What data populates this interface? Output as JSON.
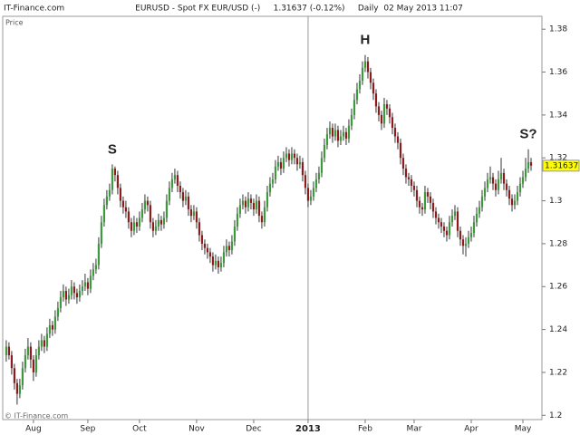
{
  "chart_data": {
    "type": "candlestick",
    "site": "IT-Finance.com",
    "title": "EURUSD - Spot FX EUR/USD (-)     1.31637 (-0.12%)     Daily  02 May 2013 11:07",
    "y_label": "Price",
    "watermark": "© IT-Finance.com",
    "last_price": 1.31637,
    "last_price_label": "1.31637",
    "up_color": "#3c9a3c",
    "down_color": "#8e1b1b",
    "annotations": [
      {
        "text": "S",
        "index": 39,
        "price": 1.317
      },
      {
        "text": "H",
        "index": 132,
        "price": 1.368
      },
      {
        "text": "S?",
        "index": 192,
        "price": 1.324
      }
    ],
    "xlim": [
      -1.3,
      197
    ],
    "xticks": [
      {
        "value": 10,
        "label": "Aug"
      },
      {
        "value": 30,
        "label": "Sep"
      },
      {
        "value": 49,
        "label": "Oct"
      },
      {
        "value": 70,
        "label": "Nov"
      },
      {
        "value": 91,
        "label": "Dec"
      },
      {
        "value": 111,
        "label": "2013"
      },
      {
        "value": 132,
        "label": "Feb"
      },
      {
        "value": 150,
        "label": "Mar"
      },
      {
        "value": 171,
        "label": "Apr"
      },
      {
        "value": 190,
        "label": "May"
      }
    ],
    "ylim": [
      1.198,
      1.386
    ],
    "yticks": [
      1.38,
      1.36,
      1.34,
      1.32,
      1.3,
      1.28,
      1.26,
      1.24,
      1.22,
      1.2
    ],
    "ohlc": [
      [
        1.228,
        1.235,
        1.225,
        1.232
      ],
      [
        1.232,
        1.234,
        1.226,
        1.228
      ],
      [
        1.228,
        1.23,
        1.219,
        1.222
      ],
      [
        1.222,
        1.224,
        1.212,
        1.215
      ],
      [
        1.215,
        1.217,
        1.205,
        1.21
      ],
      [
        1.21,
        1.217,
        1.208,
        1.214
      ],
      [
        1.214,
        1.225,
        1.212,
        1.222
      ],
      [
        1.222,
        1.231,
        1.22,
        1.228
      ],
      [
        1.228,
        1.236,
        1.226,
        1.232
      ],
      [
        1.232,
        1.234,
        1.222,
        1.226
      ],
      [
        1.226,
        1.228,
        1.216,
        1.22
      ],
      [
        1.22,
        1.231,
        1.218,
        1.228
      ],
      [
        1.228,
        1.235,
        1.226,
        1.232
      ],
      [
        1.232,
        1.238,
        1.23,
        1.235
      ],
      [
        1.235,
        1.237,
        1.229,
        1.232
      ],
      [
        1.232,
        1.241,
        1.23,
        1.238
      ],
      [
        1.238,
        1.245,
        1.236,
        1.242
      ],
      [
        1.242,
        1.244,
        1.237,
        1.24
      ],
      [
        1.24,
        1.249,
        1.238,
        1.246
      ],
      [
        1.246,
        1.253,
        1.244,
        1.25
      ],
      [
        1.25,
        1.258,
        1.248,
        1.255
      ],
      [
        1.255,
        1.261,
        1.253,
        1.258
      ],
      [
        1.258,
        1.26,
        1.251,
        1.254
      ],
      [
        1.254,
        1.259,
        1.252,
        1.256
      ],
      [
        1.256,
        1.263,
        1.254,
        1.26
      ],
      [
        1.26,
        1.262,
        1.254,
        1.257
      ],
      [
        1.257,
        1.259,
        1.252,
        1.255
      ],
      [
        1.255,
        1.261,
        1.253,
        1.258
      ],
      [
        1.258,
        1.263,
        1.256,
        1.26
      ],
      [
        1.26,
        1.266,
        1.258,
        1.262
      ],
      [
        1.262,
        1.264,
        1.256,
        1.259
      ],
      [
        1.259,
        1.268,
        1.257,
        1.265
      ],
      [
        1.265,
        1.271,
        1.263,
        1.268
      ],
      [
        1.268,
        1.273,
        1.266,
        1.27
      ],
      [
        1.27,
        1.283,
        1.268,
        1.28
      ],
      [
        1.28,
        1.293,
        1.278,
        1.29
      ],
      [
        1.29,
        1.301,
        1.288,
        1.298
      ],
      [
        1.298,
        1.305,
        1.296,
        1.302
      ],
      [
        1.302,
        1.308,
        1.3,
        1.305
      ],
      [
        1.305,
        1.317,
        1.303,
        1.315
      ],
      [
        1.315,
        1.316,
        1.309,
        1.312
      ],
      [
        1.312,
        1.314,
        1.303,
        1.306
      ],
      [
        1.306,
        1.308,
        1.297,
        1.3
      ],
      [
        1.3,
        1.302,
        1.294,
        1.297
      ],
      [
        1.297,
        1.3,
        1.292,
        1.295
      ],
      [
        1.295,
        1.297,
        1.287,
        1.29
      ],
      [
        1.29,
        1.292,
        1.283,
        1.286
      ],
      [
        1.286,
        1.293,
        1.284,
        1.29
      ],
      [
        1.29,
        1.292,
        1.285,
        1.288
      ],
      [
        1.288,
        1.295,
        1.286,
        1.292
      ],
      [
        1.292,
        1.299,
        1.29,
        1.296
      ],
      [
        1.296,
        1.303,
        1.294,
        1.3
      ],
      [
        1.3,
        1.302,
        1.295,
        1.298
      ],
      [
        1.298,
        1.3,
        1.287,
        1.29
      ],
      [
        1.29,
        1.292,
        1.283,
        1.286
      ],
      [
        1.286,
        1.291,
        1.284,
        1.288
      ],
      [
        1.288,
        1.294,
        1.286,
        1.291
      ],
      [
        1.291,
        1.293,
        1.286,
        1.289
      ],
      [
        1.289,
        1.295,
        1.287,
        1.292
      ],
      [
        1.292,
        1.303,
        1.29,
        1.3
      ],
      [
        1.3,
        1.309,
        1.298,
        1.306
      ],
      [
        1.306,
        1.313,
        1.304,
        1.31
      ],
      [
        1.31,
        1.315,
        1.308,
        1.312
      ],
      [
        1.312,
        1.314,
        1.304,
        1.307
      ],
      [
        1.307,
        1.309,
        1.301,
        1.304
      ],
      [
        1.304,
        1.306,
        1.297,
        1.3
      ],
      [
        1.3,
        1.305,
        1.298,
        1.302
      ],
      [
        1.302,
        1.304,
        1.293,
        1.296
      ],
      [
        1.296,
        1.298,
        1.29,
        1.293
      ],
      [
        1.293,
        1.298,
        1.291,
        1.295
      ],
      [
        1.295,
        1.297,
        1.287,
        1.29
      ],
      [
        1.29,
        1.292,
        1.281,
        1.284
      ],
      [
        1.284,
        1.286,
        1.277,
        1.28
      ],
      [
        1.28,
        1.282,
        1.275,
        1.278
      ],
      [
        1.278,
        1.28,
        1.273,
        1.276
      ],
      [
        1.276,
        1.278,
        1.271,
        1.274
      ],
      [
        1.274,
        1.276,
        1.267,
        1.27
      ],
      [
        1.27,
        1.275,
        1.268,
        1.272
      ],
      [
        1.272,
        1.274,
        1.266,
        1.269
      ],
      [
        1.269,
        1.274,
        1.267,
        1.271
      ],
      [
        1.271,
        1.279,
        1.269,
        1.276
      ],
      [
        1.276,
        1.282,
        1.274,
        1.279
      ],
      [
        1.279,
        1.281,
        1.274,
        1.277
      ],
      [
        1.277,
        1.284,
        1.275,
        1.281
      ],
      [
        1.281,
        1.291,
        1.279,
        1.288
      ],
      [
        1.288,
        1.297,
        1.286,
        1.294
      ],
      [
        1.294,
        1.301,
        1.292,
        1.298
      ],
      [
        1.298,
        1.303,
        1.296,
        1.3
      ],
      [
        1.3,
        1.302,
        1.294,
        1.297
      ],
      [
        1.297,
        1.304,
        1.295,
        1.301
      ],
      [
        1.301,
        1.303,
        1.296,
        1.299
      ],
      [
        1.299,
        1.301,
        1.293,
        1.296
      ],
      [
        1.296,
        1.303,
        1.294,
        1.3
      ],
      [
        1.3,
        1.302,
        1.29,
        1.293
      ],
      [
        1.293,
        1.295,
        1.287,
        1.29
      ],
      [
        1.29,
        1.3,
        1.288,
        1.297
      ],
      [
        1.297,
        1.307,
        1.295,
        1.304
      ],
      [
        1.304,
        1.311,
        1.302,
        1.308
      ],
      [
        1.308,
        1.313,
        1.306,
        1.31
      ],
      [
        1.31,
        1.319,
        1.308,
        1.316
      ],
      [
        1.316,
        1.321,
        1.314,
        1.318
      ],
      [
        1.318,
        1.32,
        1.312,
        1.315
      ],
      [
        1.315,
        1.323,
        1.313,
        1.32
      ],
      [
        1.32,
        1.325,
        1.318,
        1.322
      ],
      [
        1.322,
        1.324,
        1.316,
        1.319
      ],
      [
        1.319,
        1.325,
        1.317,
        1.322
      ],
      [
        1.322,
        1.324,
        1.317,
        1.32
      ],
      [
        1.32,
        1.322,
        1.314,
        1.317
      ],
      [
        1.317,
        1.321,
        1.315,
        1.318
      ],
      [
        1.318,
        1.32,
        1.309,
        1.312
      ],
      [
        1.312,
        1.314,
        1.303,
        1.306
      ],
      [
        1.306,
        1.308,
        1.297,
        1.3
      ],
      [
        1.3,
        1.305,
        1.298,
        1.302
      ],
      [
        1.302,
        1.309,
        1.3,
        1.306
      ],
      [
        1.306,
        1.313,
        1.304,
        1.31
      ],
      [
        1.31,
        1.316,
        1.308,
        1.313
      ],
      [
        1.313,
        1.323,
        1.311,
        1.32
      ],
      [
        1.32,
        1.329,
        1.318,
        1.326
      ],
      [
        1.326,
        1.334,
        1.324,
        1.331
      ],
      [
        1.331,
        1.337,
        1.329,
        1.334
      ],
      [
        1.334,
        1.336,
        1.327,
        1.33
      ],
      [
        1.33,
        1.336,
        1.328,
        1.333
      ],
      [
        1.333,
        1.335,
        1.325,
        1.328
      ],
      [
        1.328,
        1.333,
        1.326,
        1.33
      ],
      [
        1.33,
        1.335,
        1.328,
        1.332
      ],
      [
        1.332,
        1.334,
        1.326,
        1.329
      ],
      [
        1.329,
        1.338,
        1.327,
        1.335
      ],
      [
        1.335,
        1.343,
        1.333,
        1.34
      ],
      [
        1.34,
        1.35,
        1.338,
        1.347
      ],
      [
        1.347,
        1.355,
        1.345,
        1.352
      ],
      [
        1.352,
        1.359,
        1.35,
        1.356
      ],
      [
        1.356,
        1.365,
        1.354,
        1.362
      ],
      [
        1.362,
        1.368,
        1.36,
        1.365
      ],
      [
        1.365,
        1.367,
        1.357,
        1.36
      ],
      [
        1.36,
        1.362,
        1.352,
        1.355
      ],
      [
        1.355,
        1.357,
        1.347,
        1.35
      ],
      [
        1.35,
        1.352,
        1.341,
        1.344
      ],
      [
        1.344,
        1.346,
        1.337,
        1.34
      ],
      [
        1.34,
        1.342,
        1.333,
        1.336
      ],
      [
        1.336,
        1.348,
        1.334,
        1.345
      ],
      [
        1.345,
        1.347,
        1.34,
        1.343
      ],
      [
        1.343,
        1.345,
        1.336,
        1.339
      ],
      [
        1.339,
        1.341,
        1.331,
        1.334
      ],
      [
        1.334,
        1.336,
        1.327,
        1.33
      ],
      [
        1.33,
        1.332,
        1.324,
        1.327
      ],
      [
        1.327,
        1.329,
        1.317,
        1.32
      ],
      [
        1.32,
        1.322,
        1.312,
        1.315
      ],
      [
        1.315,
        1.317,
        1.308,
        1.311
      ],
      [
        1.311,
        1.313,
        1.307,
        1.31
      ],
      [
        1.31,
        1.312,
        1.304,
        1.307
      ],
      [
        1.307,
        1.309,
        1.302,
        1.305
      ],
      [
        1.305,
        1.307,
        1.297,
        1.3
      ],
      [
        1.3,
        1.302,
        1.294,
        1.297
      ],
      [
        1.297,
        1.299,
        1.293,
        1.296
      ],
      [
        1.296,
        1.307,
        1.294,
        1.304
      ],
      [
        1.304,
        1.306,
        1.299,
        1.302
      ],
      [
        1.302,
        1.304,
        1.296,
        1.299
      ],
      [
        1.299,
        1.301,
        1.292,
        1.295
      ],
      [
        1.295,
        1.297,
        1.289,
        1.292
      ],
      [
        1.292,
        1.294,
        1.287,
        1.29
      ],
      [
        1.29,
        1.292,
        1.285,
        1.288
      ],
      [
        1.288,
        1.29,
        1.283,
        1.286
      ],
      [
        1.286,
        1.288,
        1.281,
        1.284
      ],
      [
        1.284,
        1.293,
        1.282,
        1.29
      ],
      [
        1.29,
        1.296,
        1.288,
        1.293
      ],
      [
        1.293,
        1.298,
        1.291,
        1.295
      ],
      [
        1.295,
        1.297,
        1.283,
        1.286
      ],
      [
        1.286,
        1.288,
        1.279,
        1.282
      ],
      [
        1.282,
        1.284,
        1.275,
        1.279
      ],
      [
        1.279,
        1.283,
        1.274,
        1.28
      ],
      [
        1.28,
        1.286,
        1.278,
        1.283
      ],
      [
        1.283,
        1.288,
        1.281,
        1.285
      ],
      [
        1.285,
        1.293,
        1.283,
        1.29
      ],
      [
        1.29,
        1.297,
        1.288,
        1.294
      ],
      [
        1.294,
        1.3,
        1.292,
        1.297
      ],
      [
        1.297,
        1.305,
        1.295,
        1.302
      ],
      [
        1.302,
        1.309,
        1.3,
        1.306
      ],
      [
        1.306,
        1.313,
        1.304,
        1.31
      ],
      [
        1.31,
        1.316,
        1.308,
        1.311
      ],
      [
        1.311,
        1.313,
        1.305,
        1.308
      ],
      [
        1.308,
        1.31,
        1.302,
        1.305
      ],
      [
        1.305,
        1.314,
        1.303,
        1.31
      ],
      [
        1.31,
        1.32,
        1.308,
        1.313
      ],
      [
        1.313,
        1.315,
        1.305,
        1.308
      ],
      [
        1.308,
        1.31,
        1.302,
        1.305
      ],
      [
        1.305,
        1.307,
        1.298,
        1.301
      ],
      [
        1.301,
        1.303,
        1.295,
        1.298
      ],
      [
        1.298,
        1.303,
        1.296,
        1.3
      ],
      [
        1.3,
        1.307,
        1.298,
        1.304
      ],
      [
        1.304,
        1.311,
        1.302,
        1.308
      ],
      [
        1.308,
        1.314,
        1.306,
        1.311
      ],
      [
        1.311,
        1.32,
        1.309,
        1.315
      ],
      [
        1.315,
        1.324,
        1.313,
        1.318
      ],
      [
        1.318,
        1.32,
        1.314,
        1.3164
      ]
    ]
  }
}
